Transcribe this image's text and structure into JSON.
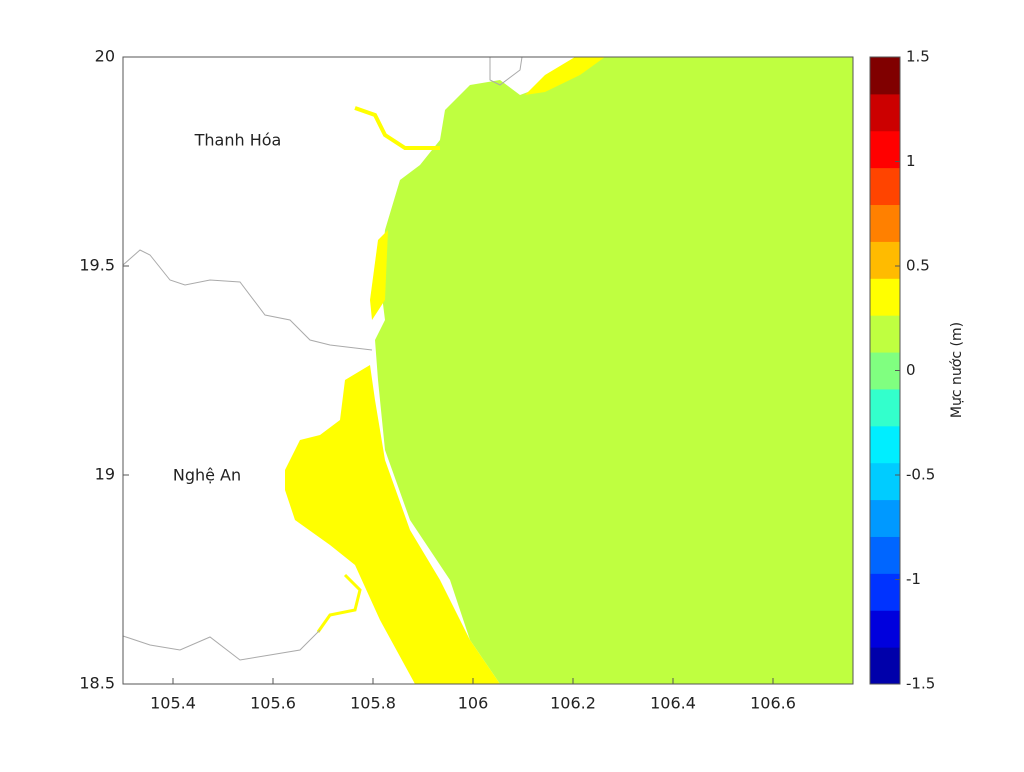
{
  "map": {
    "labels": [
      "Thanh Hóa",
      "Nghệ An"
    ],
    "xlim": [
      105.3,
      106.76
    ],
    "xticks": [
      105.4,
      105.6,
      105.8,
      106,
      106.2,
      106.4,
      106.6
    ],
    "ylim": [
      18.5,
      20
    ],
    "yticks": [
      18.5,
      19,
      19.5,
      20
    ],
    "colorbar": {
      "label": "Mực nước (m)",
      "clim": [
        -1.5,
        1.5
      ],
      "ticks": [
        -1.5,
        -1,
        -0.5,
        0,
        0.5,
        1,
        1.5
      ],
      "colors": [
        "#0000aa",
        "#0000dd",
        "#0033ff",
        "#0066ff",
        "#0099ff",
        "#00ccff",
        "#00eeff",
        "#33ffcc",
        "#80ff80",
        "#bfff40",
        "#ffff00",
        "#ffbb00",
        "#ff8000",
        "#ff4400",
        "#ff0000",
        "#cc0000",
        "#800000"
      ]
    }
  }
}
